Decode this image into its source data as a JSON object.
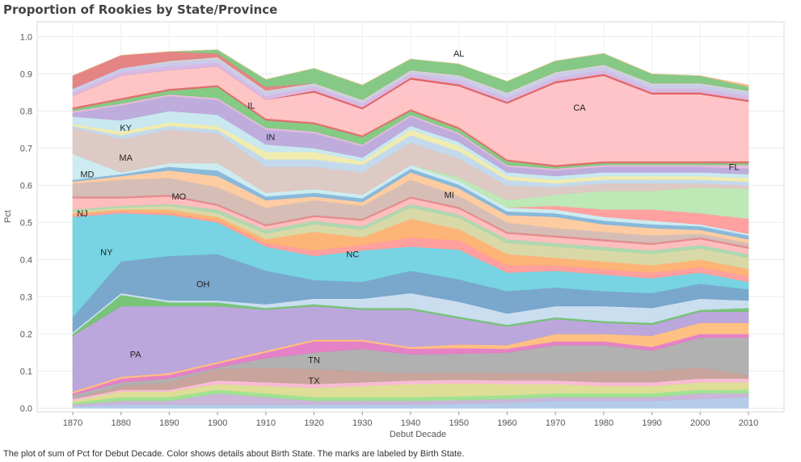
{
  "title": "Proportion of Rookies by State/Province",
  "caption": "The plot of sum of Pct for Debut Decade.  Color shows details about Birth State.  The marks are labeled by Birth State.",
  "chart_data": {
    "type": "area",
    "stacked": true,
    "xlabel": "Debut Decade",
    "ylabel": "Pct",
    "x": [
      1870,
      1880,
      1890,
      1900,
      1910,
      1920,
      1930,
      1940,
      1950,
      1960,
      1970,
      1980,
      1990,
      2000,
      2010
    ],
    "xlim": [
      1870,
      2010
    ],
    "ylim": [
      -0.01,
      1.04
    ],
    "yticks": [
      "0.0",
      "0.1",
      "0.2",
      "0.3",
      "0.4",
      "0.5",
      "0.6",
      "0.7",
      "0.8",
      "0.9",
      "1.0"
    ],
    "grid": true,
    "series": [
      {
        "name": "",
        "color": "#aec7e8",
        "values": [
          0.005,
          0.01,
          0.01,
          0.01,
          0.01,
          0.01,
          0.01,
          0.01,
          0.012,
          0.015,
          0.02,
          0.02,
          0.02,
          0.025,
          0.03
        ]
      },
      {
        "name": "",
        "color": "#c5b0d5",
        "values": [
          0.005,
          0.01,
          0.01,
          0.03,
          0.02,
          0.01,
          0.01,
          0.01,
          0.01,
          0.01,
          0.01,
          0.01,
          0.01,
          0.015,
          0.01
        ]
      },
      {
        "name": "",
        "color": "#98df8a",
        "values": [
          0.005,
          0.01,
          0.01,
          0.01,
          0.01,
          0.01,
          0.01,
          0.01,
          0.01,
          0.01,
          0.01,
          0.01,
          0.01,
          0.01,
          0.01
        ]
      },
      {
        "name": "",
        "color": "#dbdb8d",
        "values": [
          0.005,
          0.015,
          0.015,
          0.015,
          0.02,
          0.025,
          0.03,
          0.035,
          0.035,
          0.03,
          0.025,
          0.02,
          0.02,
          0.02,
          0.02
        ]
      },
      {
        "name": "",
        "color": "#f7b6d2",
        "values": [
          0.005,
          0.005,
          0.005,
          0.01,
          0.01,
          0.01,
          0.01,
          0.01,
          0.01,
          0.01,
          0.01,
          0.01,
          0.01,
          0.01,
          0.01
        ]
      },
      {
        "name": "",
        "color": "#c49c94",
        "values": [
          0.0,
          0.01,
          0.02,
          0.03,
          0.04,
          0.04,
          0.03,
          0.02,
          0.02,
          0.02,
          0.02,
          0.03,
          0.03,
          0.03,
          0.01
        ]
      },
      {
        "name": "TX",
        "color": "#aaaaaa",
        "values": [
          0.01,
          0.01,
          0.01,
          0.005,
          0.025,
          0.045,
          0.06,
          0.05,
          0.05,
          0.055,
          0.075,
          0.07,
          0.055,
          0.08,
          0.1
        ]
      },
      {
        "name": "TN",
        "color": "#e377c2",
        "values": [
          0.005,
          0.01,
          0.01,
          0.01,
          0.015,
          0.03,
          0.02,
          0.015,
          0.015,
          0.01,
          0.01,
          0.01,
          0.01,
          0.01,
          0.01
        ]
      },
      {
        "name": "",
        "color": "#ffbb78",
        "values": [
          0.005,
          0.005,
          0.005,
          0.005,
          0.005,
          0.005,
          0.005,
          0.005,
          0.01,
          0.01,
          0.02,
          0.02,
          0.03,
          0.03,
          0.03
        ]
      },
      {
        "name": "PA",
        "color": "#b59fd8",
        "values": [
          0.15,
          0.19,
          0.18,
          0.15,
          0.11,
          0.09,
          0.08,
          0.1,
          0.07,
          0.05,
          0.04,
          0.03,
          0.03,
          0.03,
          0.03
        ]
      },
      {
        "name": "",
        "color": "#6cbf6c",
        "values": [
          0.005,
          0.03,
          0.01,
          0.01,
          0.005,
          0.005,
          0.005,
          0.005,
          0.005,
          0.005,
          0.005,
          0.005,
          0.005,
          0.005,
          0.01
        ]
      },
      {
        "name": "",
        "color": "#c6dbef",
        "values": [
          0.005,
          0.005,
          0.005,
          0.005,
          0.01,
          0.015,
          0.025,
          0.04,
          0.04,
          0.03,
          0.03,
          0.04,
          0.04,
          0.03,
          0.02
        ]
      },
      {
        "name": "OH",
        "color": "#6fa0c8",
        "values": [
          0.04,
          0.085,
          0.12,
          0.125,
          0.09,
          0.05,
          0.045,
          0.06,
          0.06,
          0.06,
          0.05,
          0.04,
          0.04,
          0.04,
          0.03
        ]
      },
      {
        "name": "NY",
        "color": "#6dd0e0",
        "values": [
          0.27,
          0.13,
          0.11,
          0.085,
          0.065,
          0.065,
          0.085,
          0.065,
          0.08,
          0.05,
          0.045,
          0.045,
          0.04,
          0.03,
          0.02
        ]
      },
      {
        "name": "",
        "color": "#ff9896",
        "values": [
          0.005,
          0.005,
          0.005,
          0.005,
          0.01,
          0.015,
          0.015,
          0.025,
          0.025,
          0.02,
          0.015,
          0.015,
          0.015,
          0.015,
          0.015
        ]
      },
      {
        "name": "NC",
        "color": "#fdae6b",
        "values": [
          0.005,
          0.005,
          0.01,
          0.01,
          0.01,
          0.05,
          0.02,
          0.05,
          0.03,
          0.03,
          0.02,
          0.02,
          0.02,
          0.02,
          0.02
        ]
      },
      {
        "name": "",
        "color": "#d6d6a0",
        "values": [
          0.005,
          0.005,
          0.01,
          0.01,
          0.015,
          0.02,
          0.02,
          0.03,
          0.03,
          0.03,
          0.03,
          0.03,
          0.03,
          0.03,
          0.03
        ]
      },
      {
        "name": "",
        "color": "#a8d5a8",
        "values": [
          0.005,
          0.005,
          0.005,
          0.01,
          0.01,
          0.01,
          0.01,
          0.01,
          0.01,
          0.01,
          0.01,
          0.01,
          0.01,
          0.01,
          0.01
        ]
      },
      {
        "name": "NJ",
        "color": "#ffb8b8",
        "values": [
          0.03,
          0.02,
          0.02,
          0.01,
          0.01,
          0.01,
          0.015,
          0.015,
          0.015,
          0.015,
          0.015,
          0.015,
          0.015,
          0.015,
          0.015
        ]
      },
      {
        "name": "",
        "color": "#e08585",
        "values": [
          0.005,
          0.005,
          0.005,
          0.005,
          0.005,
          0.005,
          0.005,
          0.005,
          0.005,
          0.005,
          0.005,
          0.005,
          0.005,
          0.005,
          0.005
        ]
      },
      {
        "name": "MO",
        "color": "#d3b8b0",
        "values": [
          0.035,
          0.045,
          0.045,
          0.045,
          0.045,
          0.04,
          0.035,
          0.045,
          0.03,
          0.025,
          0.02,
          0.02,
          0.02,
          0.01,
          0.01
        ]
      },
      {
        "name": "",
        "color": "#fdc89a",
        "values": [
          0.005,
          0.01,
          0.02,
          0.03,
          0.02,
          0.01,
          0.01,
          0.02,
          0.02,
          0.02,
          0.03,
          0.02,
          0.02,
          0.01,
          0.01
        ]
      },
      {
        "name": "",
        "color": "#7fb3d8",
        "values": [
          0.005,
          0.005,
          0.01,
          0.015,
          0.01,
          0.01,
          0.01,
          0.01,
          0.01,
          0.01,
          0.01,
          0.01,
          0.01,
          0.01,
          0.01
        ]
      },
      {
        "name": "MD",
        "color": "#c9eaf0",
        "values": [
          0.07,
          0.005,
          0.01,
          0.02,
          0.01,
          0.01,
          0.01,
          0.01,
          0.01,
          0.01,
          0.01,
          0.01,
          0.01,
          0.005,
          0.005
        ]
      },
      {
        "name": "",
        "color": "#ff9999",
        "values": [
          0.0,
          0.0,
          0.0,
          0.0,
          0.0,
          0.0,
          0.0,
          0.0,
          0.0,
          0.0,
          0.01,
          0.02,
          0.03,
          0.03,
          0.04
        ]
      },
      {
        "name": "FL",
        "color": "#b8e6b0",
        "values": [
          0.0,
          0.0,
          0.0,
          0.0,
          0.0,
          0.0,
          0.0,
          0.0,
          0.01,
          0.02,
          0.03,
          0.05,
          0.05,
          0.07,
          0.08
        ]
      },
      {
        "name": "MA",
        "color": "#dbc5c0",
        "values": [
          0.07,
          0.09,
          0.09,
          0.08,
          0.07,
          0.06,
          0.06,
          0.06,
          0.05,
          0.04,
          0.02,
          0.02,
          0.02,
          0.01,
          0.01
        ]
      },
      {
        "name": "",
        "color": "#bfd7ea",
        "values": [
          0.005,
          0.01,
          0.01,
          0.01,
          0.02,
          0.02,
          0.02,
          0.02,
          0.02,
          0.015,
          0.01,
          0.01,
          0.01,
          0.01,
          0.01
        ]
      },
      {
        "name": "",
        "color": "#efeaa8",
        "values": [
          0.005,
          0.01,
          0.01,
          0.01,
          0.02,
          0.02,
          0.01,
          0.015,
          0.015,
          0.01,
          0.01,
          0.01,
          0.01,
          0.01,
          0.01
        ]
      },
      {
        "name": "KY",
        "color": "#c4e6ef",
        "values": [
          0.02,
          0.03,
          0.03,
          0.03,
          0.02,
          0.01,
          0.01,
          0.01,
          0.01,
          0.01,
          0.01,
          0.01,
          0.01,
          0.01,
          0.01
        ]
      },
      {
        "name": "IN",
        "color": "#b9a6d9",
        "values": [
          0.01,
          0.04,
          0.04,
          0.04,
          0.04,
          0.04,
          0.03,
          0.025,
          0.02,
          0.015,
          0.015,
          0.015,
          0.015,
          0.015,
          0.015
        ]
      },
      {
        "name": "",
        "color": "#e2b6d8",
        "values": [
          0.005,
          0.005,
          0.005,
          0.005,
          0.005,
          0.005,
          0.005,
          0.005,
          0.005,
          0.005,
          0.005,
          0.005,
          0.005,
          0.005,
          0.01
        ]
      },
      {
        "name": "",
        "color": "#7ac77a",
        "values": [
          0.005,
          0.01,
          0.01,
          0.03,
          0.02,
          0.02,
          0.02,
          0.01,
          0.01,
          0.01,
          0.005,
          0.005,
          0.005,
          0.005,
          0.005
        ]
      },
      {
        "name": "",
        "color": "#e06666",
        "values": [
          0.005,
          0.005,
          0.005,
          0.005,
          0.005,
          0.005,
          0.005,
          0.005,
          0.005,
          0.005,
          0.005,
          0.005,
          0.005,
          0.005,
          0.005
        ]
      },
      {
        "name": "IL",
        "color": "#ffc0c0",
        "values": [
          0.03,
          0.06,
          0.05,
          0.05,
          0.05,
          0.05,
          0.02,
          0.03,
          0.02,
          0.02,
          0.01,
          0.01,
          0.01,
          0.01,
          0.01
        ]
      },
      {
        "name": "CA",
        "color": "#ffbfc3",
        "values": [
          0.0,
          0.0,
          0.0,
          0.0,
          0.0,
          0.03,
          0.05,
          0.05,
          0.09,
          0.13,
          0.21,
          0.22,
          0.17,
          0.17,
          0.15
        ]
      },
      {
        "name": "",
        "color": "#e05a5a",
        "values": [
          0.0,
          0.0,
          0.0,
          0.0,
          0.0,
          0.005,
          0.005,
          0.005,
          0.005,
          0.005,
          0.005,
          0.005,
          0.005,
          0.005,
          0.005
        ]
      },
      {
        "name": "",
        "color": "#d5b3e0",
        "values": [
          0.01,
          0.01,
          0.01,
          0.01,
          0.01,
          0.01,
          0.01,
          0.01,
          0.01,
          0.01,
          0.01,
          0.01,
          0.01,
          0.01,
          0.01
        ]
      },
      {
        "name": "",
        "color": "#c7c7e8",
        "values": [
          0.01,
          0.01,
          0.01,
          0.01,
          0.01,
          0.005,
          0.005,
          0.005,
          0.01,
          0.01,
          0.01,
          0.01,
          0.01,
          0.01,
          0.01
        ]
      },
      {
        "name": "",
        "color": "#d0d0d0",
        "values": [
          0.0,
          0.0,
          0.005,
          0.005,
          0.005,
          0.005,
          0.005,
          0.005,
          0.005,
          0.005,
          0.005,
          0.005,
          0.005,
          0.005,
          0.005
        ]
      },
      {
        "name": "",
        "color": "#e37a7a",
        "values": [
          0.035,
          0.035,
          0.025,
          0.01,
          0.01,
          0.0,
          0.0,
          0.0,
          0.0,
          0.0,
          0.0,
          0.0,
          0.0,
          0.0,
          0.0
        ]
      },
      {
        "name": "AL",
        "color": "#7cc47c",
        "values": [
          0.0,
          0.0,
          0.0,
          0.01,
          0.02,
          0.04,
          0.04,
          0.03,
          0.03,
          0.03,
          0.03,
          0.03,
          0.025,
          0.02,
          0.01
        ]
      },
      {
        "name": "",
        "color": "#f0b27a",
        "values": [
          0.0,
          0.0,
          0.0,
          0.0,
          0.0,
          0.0,
          0.0,
          0.0,
          0.0,
          0.0,
          0.0,
          0.0,
          0.0,
          0.0,
          0.005
        ]
      }
    ],
    "labels": [
      {
        "text": "AL",
        "x": 1950,
        "y": 0.955
      },
      {
        "text": "CA",
        "x": 1975,
        "y": 0.81
      },
      {
        "text": "IL",
        "x": 1907,
        "y": 0.815
      },
      {
        "text": "IN",
        "x": 1911,
        "y": 0.73
      },
      {
        "text": "KY",
        "x": 1881,
        "y": 0.755
      },
      {
        "text": "MA",
        "x": 1881,
        "y": 0.675
      },
      {
        "text": "MD",
        "x": 1873,
        "y": 0.63
      },
      {
        "text": "FL",
        "x": 2007,
        "y": 0.65
      },
      {
        "text": "MO",
        "x": 1892,
        "y": 0.57
      },
      {
        "text": "MI",
        "x": 1948,
        "y": 0.575
      },
      {
        "text": "NJ",
        "x": 1872,
        "y": 0.525
      },
      {
        "text": "NC",
        "x": 1928,
        "y": 0.415
      },
      {
        "text": "NY",
        "x": 1877,
        "y": 0.42
      },
      {
        "text": "OH",
        "x": 1897,
        "y": 0.335
      },
      {
        "text": "PA",
        "x": 1883,
        "y": 0.145
      },
      {
        "text": "TN",
        "x": 1920,
        "y": 0.13
      },
      {
        "text": "TX",
        "x": 1920,
        "y": 0.075
      }
    ]
  }
}
